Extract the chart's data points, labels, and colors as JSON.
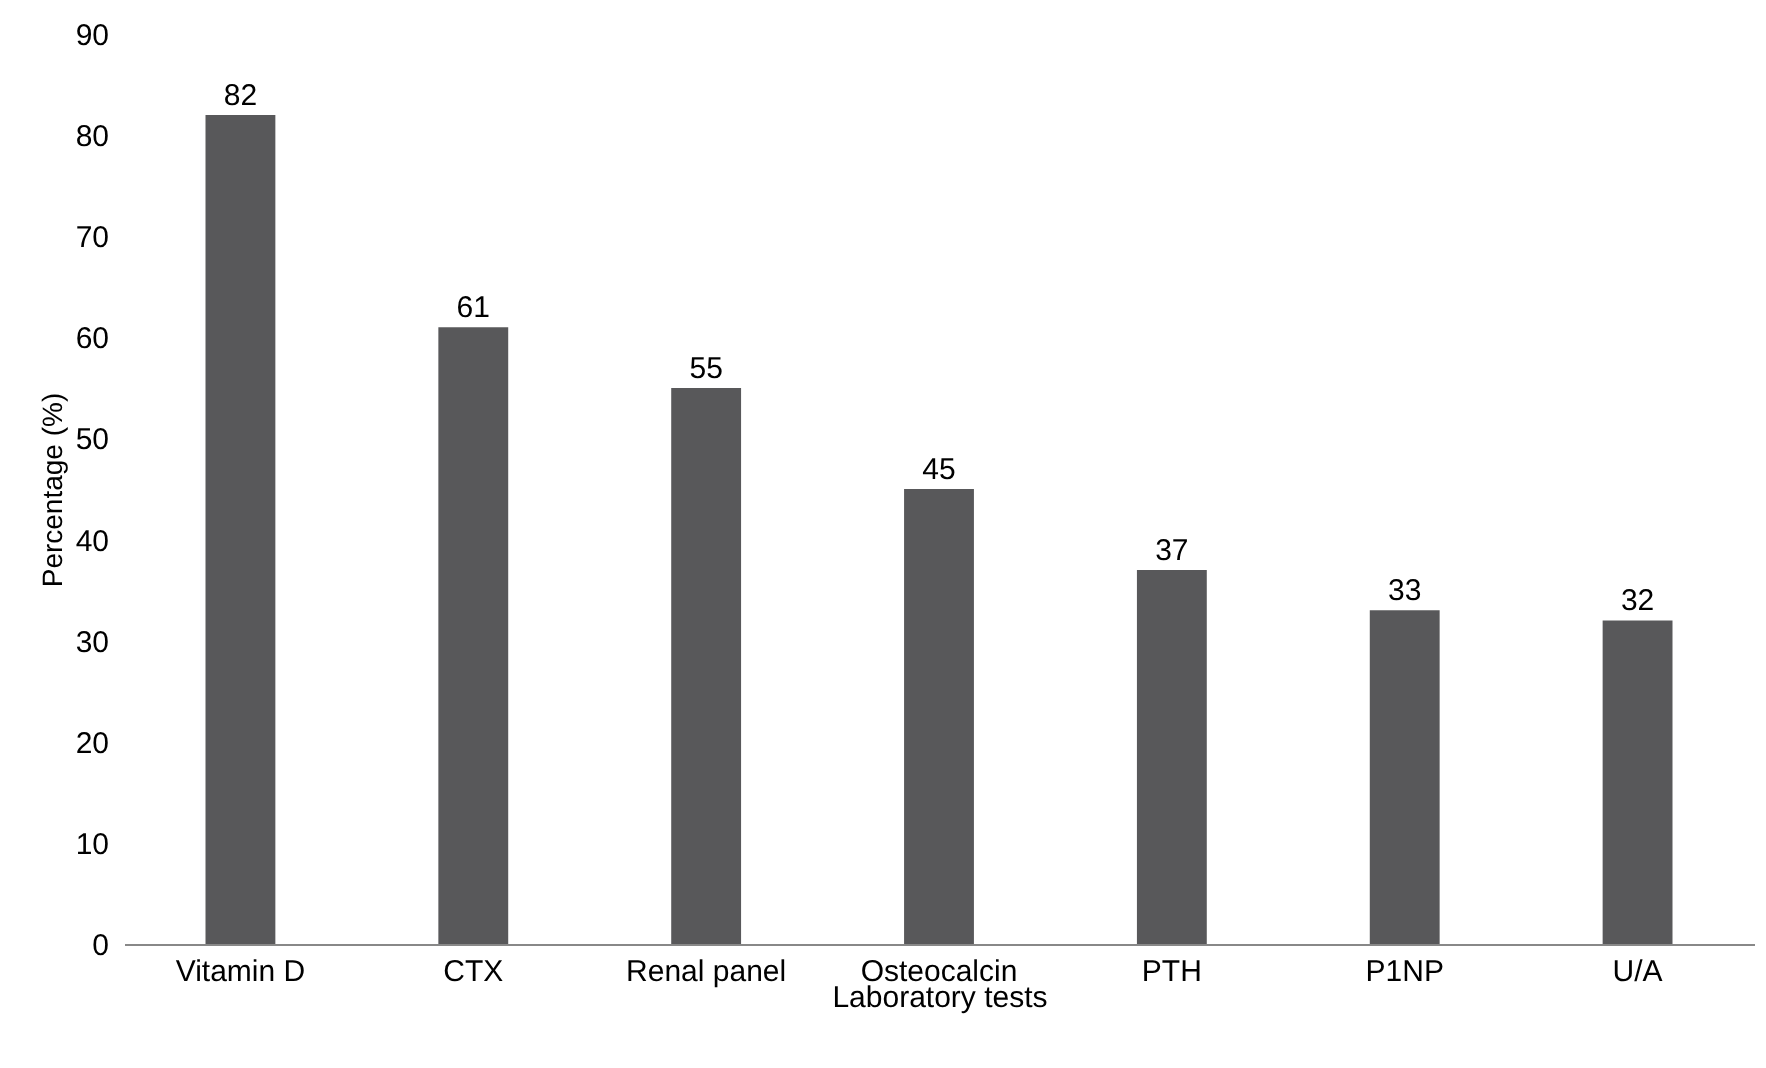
{
  "chart_data": {
    "type": "bar",
    "xlabel": "Laboratory tests",
    "ylabel": "Percentage (%)",
    "categories": [
      "Vitamin D",
      "CTX",
      "Renal panel",
      "Osteocalcin",
      "PTH",
      "P1NP",
      "U/A"
    ],
    "values": [
      82,
      61,
      55,
      45,
      37,
      33,
      32
    ],
    "color": "#58585a",
    "ylim": [
      0,
      90
    ],
    "yticks": [
      0,
      10,
      20,
      30,
      40,
      50,
      60,
      70,
      80,
      90
    ],
    "data_labels": true
  }
}
